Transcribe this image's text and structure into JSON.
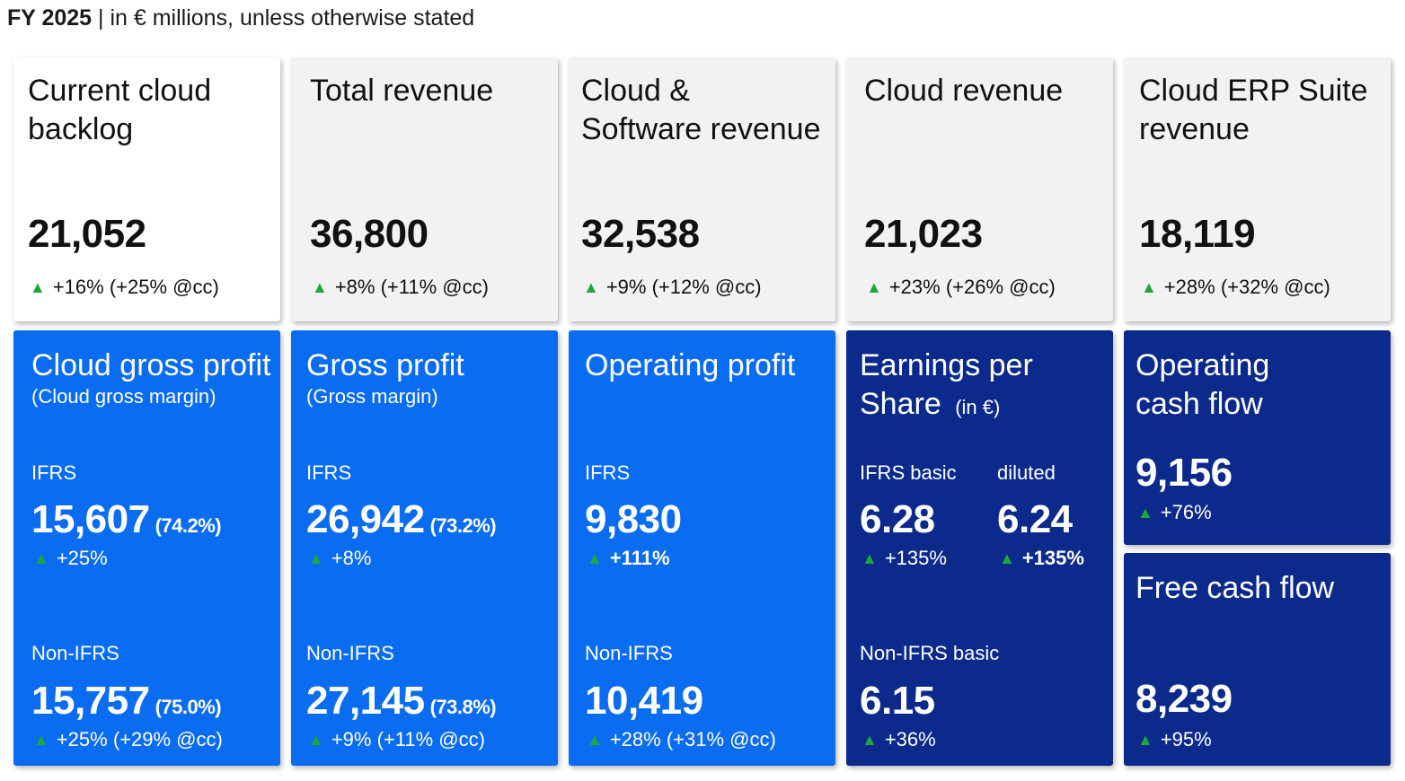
{
  "header": {
    "fy": "FY 2025",
    "separator": " | ",
    "note": "in € millions, unless otherwise stated"
  },
  "colors": {
    "up_arrow": "#1fa83a",
    "blue_card": "#0a6cf0",
    "navy_card": "#0c2a8c",
    "grey_card": "#f2f2f2"
  },
  "icons": {
    "up": "triangle-up"
  },
  "arrow": "▲",
  "top": {
    "backlog": {
      "title1": "Current cloud",
      "title2": "backlog",
      "value": "21,052",
      "change": "+16% (+25% @cc)"
    },
    "total": {
      "title1": "Total revenue",
      "value": "36,800",
      "change": "+8% (+11% @cc)"
    },
    "cloud_software": {
      "title1": "Cloud &",
      "title2": "Software revenue",
      "value": "32,538",
      "change": "+9% (+12% @cc)"
    },
    "cloud": {
      "title1": "Cloud revenue",
      "value": "21,023",
      "change": "+23% (+26% @cc)"
    },
    "erp": {
      "title1": "Cloud ERP Suite",
      "title2": "revenue",
      "value": "18,119",
      "change": "+28% (+32% @cc)"
    }
  },
  "bottom": {
    "cgp": {
      "title": "Cloud gross profit",
      "subtitle": "(Cloud gross margin)",
      "ifrs_label": "IFRS",
      "ifrs_value": "15,607",
      "ifrs_margin": "(74.2%)",
      "ifrs_change": "+25%",
      "non_label": "Non-IFRS",
      "non_value": "15,757",
      "non_margin": "(75.0%)",
      "non_change": "+25% (+29% @cc)"
    },
    "gp": {
      "title": "Gross profit",
      "subtitle": "(Gross margin)",
      "ifrs_label": "IFRS",
      "ifrs_value": "26,942",
      "ifrs_margin": "(73.2%)",
      "ifrs_change": "+8%",
      "non_label": "Non-IFRS",
      "non_value": "27,145",
      "non_margin": "(73.8%)",
      "non_change": "+9% (+11% @cc)"
    },
    "op": {
      "title": "Operating profit",
      "ifrs_label": "IFRS",
      "ifrs_value": "9,830",
      "ifrs_change": "+111%",
      "non_label": "Non-IFRS",
      "non_value": "10,419",
      "non_change": "+28% (+31% @cc)"
    },
    "eps": {
      "title1": "Earnings per",
      "title2": "Share",
      "unit": "(in €)",
      "basic_label": "IFRS basic",
      "basic_value": "6.28",
      "basic_change": "+135%",
      "diluted_label": "diluted",
      "diluted_value": "6.24",
      "diluted_change": "+135%",
      "non_label": "Non-IFRS basic",
      "non_value": "6.15",
      "non_change": "+36%"
    },
    "ocf": {
      "title1": "Operating",
      "title2": "cash flow",
      "value": "9,156",
      "change": "+76%"
    },
    "fcf": {
      "title": "Free cash flow",
      "value": "8,239",
      "change": "+95%"
    }
  }
}
